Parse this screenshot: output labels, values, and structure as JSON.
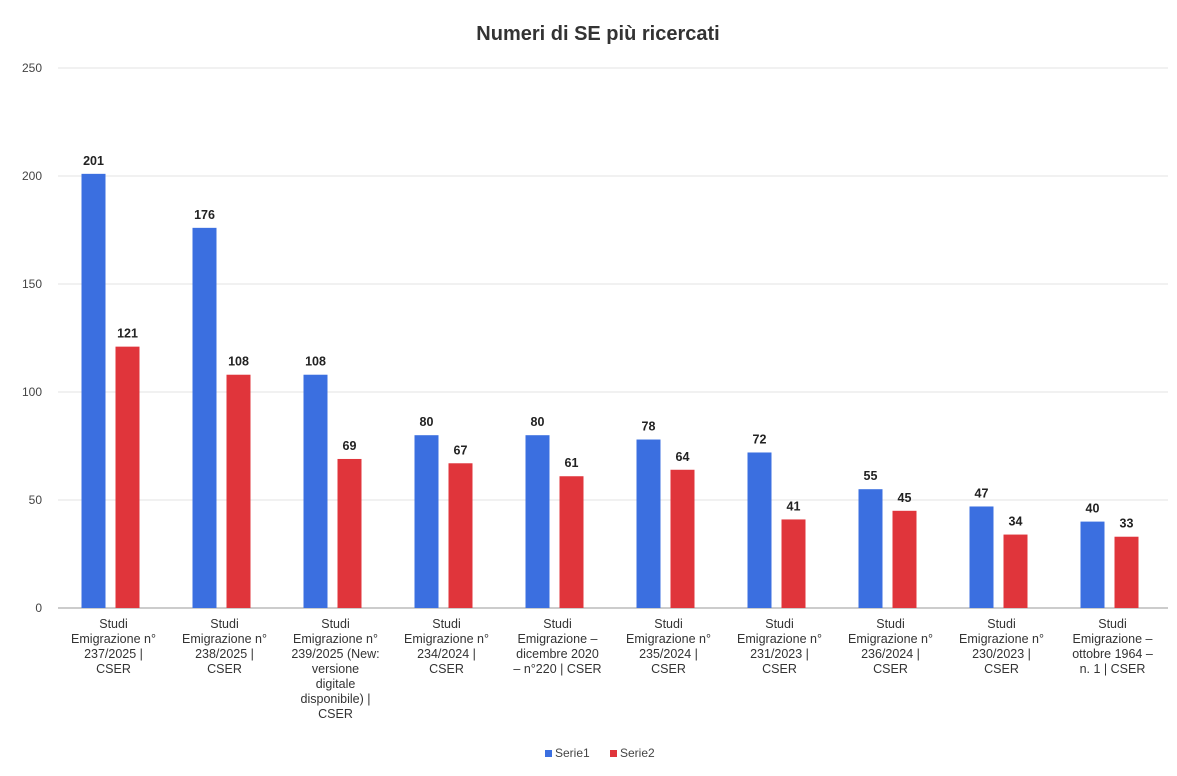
{
  "chart_data": {
    "type": "bar",
    "title": "Numeri di SE più ricercati",
    "xlabel": "",
    "ylabel": "",
    "ylim": [
      0,
      250
    ],
    "yticks": [
      "0",
      "50",
      "100",
      "150",
      "200",
      "250"
    ],
    "grid": true,
    "legend_position": "bottom",
    "categories": [
      "Studi Emigrazione n° 237/2025 | CSER",
      "Studi Emigrazione n° 238/2025 | CSER",
      "Studi Emigrazione n° 239/2025 (New: versione digitale disponibile) | CSER",
      "Studi Emigrazione n° 234/2024 | CSER",
      "Studi Emigrazione – dicembre 2020 – n°220 | CSER",
      "Studi Emigrazione n° 235/2024 | CSER",
      "Studi Emigrazione n° 231/2023 | CSER",
      "Studi Emigrazione n° 236/2024 | CSER",
      "Studi Emigrazione n° 230/2023 | CSER",
      "Studi Emigrazione – ottobre 1964 – n. 1 | CSER"
    ],
    "category_lines": [
      [
        "Studi",
        "Emigrazione n°",
        "237/2025 |",
        "CSER"
      ],
      [
        "Studi",
        "Emigrazione n°",
        "238/2025 |",
        "CSER"
      ],
      [
        "Studi",
        "Emigrazione n°",
        "239/2025 (New:",
        "versione",
        "digitale",
        "disponibile) |",
        "CSER"
      ],
      [
        "Studi",
        "Emigrazione n°",
        "234/2024 |",
        "CSER"
      ],
      [
        "Studi",
        "Emigrazione –",
        "dicembre 2020",
        "– n°220 | CSER"
      ],
      [
        "Studi",
        "Emigrazione n°",
        "235/2024 |",
        "CSER"
      ],
      [
        "Studi",
        "Emigrazione n°",
        "231/2023 |",
        "CSER"
      ],
      [
        "Studi",
        "Emigrazione n°",
        "236/2024 |",
        "CSER"
      ],
      [
        "Studi",
        "Emigrazione n°",
        "230/2023 |",
        "CSER"
      ],
      [
        "Studi",
        "Emigrazione –",
        "ottobre 1964 –",
        "n. 1 | CSER"
      ]
    ],
    "series": [
      {
        "name": "Serie1",
        "color": "#3b6fe0",
        "values": [
          201,
          176,
          108,
          80,
          80,
          78,
          72,
          55,
          47,
          40
        ]
      },
      {
        "name": "Serie2",
        "color": "#e0353b",
        "values": [
          121,
          108,
          69,
          67,
          61,
          64,
          41,
          45,
          34,
          33
        ]
      }
    ]
  }
}
